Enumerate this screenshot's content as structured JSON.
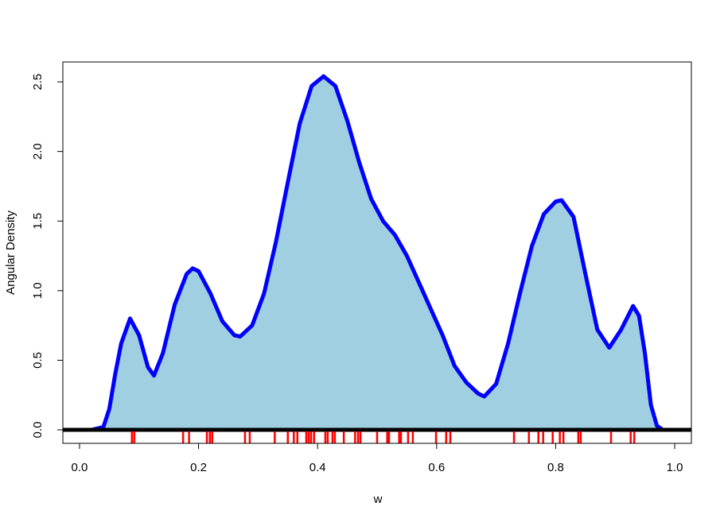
{
  "chart_data": {
    "type": "density",
    "x_label": "w",
    "y_label": "Angular Density",
    "x": [
      0.0,
      0.02,
      0.04,
      0.05,
      0.06,
      0.07,
      0.085,
      0.1,
      0.115,
      0.125,
      0.14,
      0.16,
      0.18,
      0.19,
      0.2,
      0.22,
      0.24,
      0.26,
      0.27,
      0.29,
      0.31,
      0.33,
      0.35,
      0.37,
      0.39,
      0.41,
      0.43,
      0.45,
      0.47,
      0.49,
      0.51,
      0.53,
      0.55,
      0.57,
      0.59,
      0.61,
      0.63,
      0.65,
      0.67,
      0.68,
      0.7,
      0.72,
      0.74,
      0.76,
      0.78,
      0.8,
      0.81,
      0.83,
      0.85,
      0.87,
      0.89,
      0.91,
      0.93,
      0.94,
      0.95,
      0.96,
      0.97,
      0.98,
      1.0
    ],
    "values": [
      0,
      0,
      0.02,
      0.15,
      0.4,
      0.62,
      0.8,
      0.68,
      0.45,
      0.39,
      0.55,
      0.9,
      1.12,
      1.16,
      1.14,
      0.98,
      0.78,
      0.68,
      0.67,
      0.75,
      0.98,
      1.35,
      1.78,
      2.2,
      2.47,
      2.54,
      2.47,
      2.22,
      1.92,
      1.66,
      1.5,
      1.4,
      1.25,
      1.06,
      0.87,
      0.68,
      0.46,
      0.34,
      0.26,
      0.24,
      0.33,
      0.62,
      0.98,
      1.32,
      1.55,
      1.64,
      1.65,
      1.53,
      1.12,
      0.72,
      0.59,
      0.72,
      0.89,
      0.82,
      0.55,
      0.18,
      0.03,
      0,
      0
    ],
    "line_color": "#0000ff",
    "fill_color": "#a0cfe2",
    "rug": [
      0.088,
      0.092,
      0.174,
      0.184,
      0.214,
      0.219,
      0.223,
      0.278,
      0.286,
      0.328,
      0.35,
      0.36,
      0.366,
      0.381,
      0.385,
      0.389,
      0.394,
      0.413,
      0.417,
      0.425,
      0.429,
      0.444,
      0.463,
      0.468,
      0.472,
      0.5,
      0.517,
      0.52,
      0.537,
      0.54,
      0.552,
      0.56,
      0.599,
      0.616,
      0.623,
      0.73,
      0.755,
      0.771,
      0.779,
      0.795,
      0.807,
      0.813,
      0.838,
      0.842,
      0.893,
      0.926,
      0.932
    ],
    "rug_color": "#ff0000",
    "hline": 0,
    "hline_color": "#000000",
    "xlim": [
      -0.028,
      1.028
    ],
    "ylim": [
      -0.097,
      2.643
    ],
    "xticks": [
      {
        "value": 0,
        "label": "0.0"
      },
      0.2,
      0.4,
      0.6,
      0.8,
      {
        "value": 1,
        "label": "1.0"
      }
    ],
    "yticks": [
      {
        "value": 0,
        "label": "0.0"
      },
      0.5,
      {
        "value": 1,
        "label": "1.0"
      },
      1.5,
      {
        "value": 2,
        "label": "2.0"
      },
      2.5
    ]
  }
}
